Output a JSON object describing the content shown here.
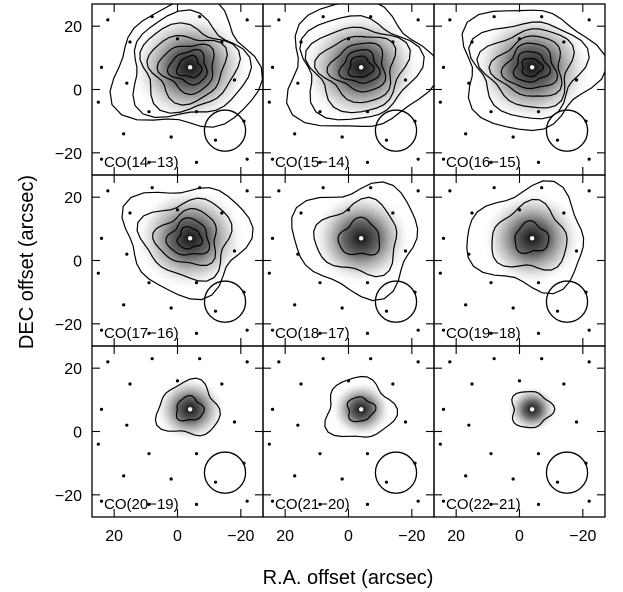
{
  "chart_data": {
    "type": "heatmap",
    "layout": "3x3 grid of contour maps sharing axes",
    "xlabel": "R.A. offset (arcsec)",
    "ylabel": "DEC offset (arcsec)",
    "xlim": [
      27,
      -27
    ],
    "ylim": [
      -27,
      27
    ],
    "x_ticks": [
      20,
      0,
      -20
    ],
    "x_tick_labels": [
      "20",
      "0",
      "−20"
    ],
    "y_ticks": [
      20,
      0,
      -20
    ],
    "y_tick_labels": [
      "20",
      "0",
      "−20"
    ],
    "beam_center": [
      -15,
      -13
    ],
    "beam_radius": 6.5,
    "peak_marker": [
      -4,
      7
    ],
    "sampling_points": [
      [
        22,
        22
      ],
      [
        8,
        23
      ],
      [
        -7,
        23
      ],
      [
        -22,
        22
      ],
      [
        15,
        15
      ],
      [
        0,
        16
      ],
      [
        -14,
        15
      ],
      [
        24,
        7
      ],
      [
        16,
        2
      ],
      [
        -18,
        3
      ],
      [
        25,
        -4
      ],
      [
        9,
        -7
      ],
      [
        -6,
        -7
      ],
      [
        -21,
        -10
      ],
      [
        17,
        -14
      ],
      [
        2,
        -15
      ],
      [
        -12,
        -16
      ],
      [
        24,
        -22
      ],
      [
        9,
        -23
      ],
      [
        -6,
        -23
      ],
      [
        -22,
        -22
      ]
    ],
    "panels": [
      {
        "label": "CO(14−13)",
        "peak_radius": 12,
        "contour_radii": [
          21,
          17,
          14,
          11,
          8,
          5.5,
          3.5
        ]
      },
      {
        "label": "CO(15−14)",
        "peak_radius": 12,
        "contour_radii": [
          21,
          17,
          14,
          11,
          8,
          5.5,
          3.5
        ]
      },
      {
        "label": "CO(16−15)",
        "peak_radius": 12,
        "contour_radii": [
          20,
          16,
          13,
          10,
          7.5,
          5,
          3
        ]
      },
      {
        "label": "CO(17−16)",
        "peak_radius": 11,
        "contour_radii": [
          18,
          13,
          9,
          6,
          3.5
        ]
      },
      {
        "label": "CO(18−17)",
        "peak_radius": 10,
        "contour_radii": [
          18,
          12,
          6
        ]
      },
      {
        "label": "CO(19−18)",
        "peak_radius": 10,
        "contour_radii": [
          17,
          11,
          5
        ]
      },
      {
        "label": "CO(20−19)",
        "peak_radius": 7,
        "contour_radii": [
          9,
          4
        ]
      },
      {
        "label": "CO(21−20)",
        "peak_radius": 6,
        "contour_radii": [
          10,
          4
        ]
      },
      {
        "label": "CO(22−21)",
        "peak_radius": 5,
        "contour_radii": [
          6
        ]
      }
    ]
  }
}
